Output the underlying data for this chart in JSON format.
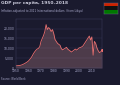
{
  "title": "GDP per capita, 1950–2018",
  "subtitle": "Inflation-adjusted to 2011 International dollars. (from Libya)",
  "bg_color": "#1a1a2e",
  "plot_bg_color": "#1a1a2e",
  "line_color": "#e87070",
  "fill_color": "#e8a0a0",
  "fill_alpha": 0.25,
  "years": [
    1950,
    1951,
    1952,
    1953,
    1954,
    1955,
    1956,
    1957,
    1958,
    1959,
    1960,
    1961,
    1962,
    1963,
    1964,
    1965,
    1966,
    1967,
    1968,
    1969,
    1970,
    1971,
    1972,
    1973,
    1974,
    1975,
    1976,
    1977,
    1978,
    1979,
    1980,
    1981,
    1982,
    1983,
    1984,
    1985,
    1986,
    1987,
    1988,
    1989,
    1990,
    1991,
    1992,
    1993,
    1994,
    1995,
    1996,
    1997,
    1998,
    1999,
    2000,
    2001,
    2002,
    2003,
    2004,
    2005,
    2006,
    2007,
    2008,
    2009,
    2010,
    2011,
    2012,
    2013,
    2014,
    2015,
    2016,
    2017,
    2018
  ],
  "values": [
    1100,
    1150,
    1200,
    1250,
    1400,
    1600,
    1900,
    2200,
    2600,
    3000,
    3500,
    4200,
    5000,
    6000,
    7200,
    8200,
    9000,
    9600,
    10000,
    10800,
    13500,
    15000,
    16500,
    18500,
    22000,
    19500,
    20500,
    19800,
    18500,
    19500,
    17500,
    14500,
    13500,
    12500,
    12000,
    11500,
    9800,
    9200,
    9600,
    10000,
    10500,
    9600,
    9100,
    8600,
    8100,
    8600,
    9100,
    9600,
    9100,
    9600,
    10200,
    10400,
    10700,
    11200,
    12200,
    13200,
    14200,
    15200,
    16200,
    14200,
    15800,
    6500,
    13500,
    12500,
    10200,
    8800,
    7800,
    8200,
    9200
  ],
  "ylim": [
    0,
    25000
  ],
  "yticks": [
    0,
    5000,
    10000,
    15000,
    20000
  ],
  "ytick_labels": [
    "0",
    "5,000",
    "10,000",
    "15,000",
    "20,000"
  ],
  "xlim": [
    1950,
    2018
  ],
  "xticks": [
    1950,
    1960,
    1970,
    1980,
    1990,
    2000,
    2010
  ],
  "grid_color": "#333355",
  "text_color": "#aaaacc",
  "title_color": "#ccccdd",
  "spine_color": "#444466",
  "flag_red": "#cc2200",
  "flag_black": "#111111",
  "flag_green": "#007700"
}
